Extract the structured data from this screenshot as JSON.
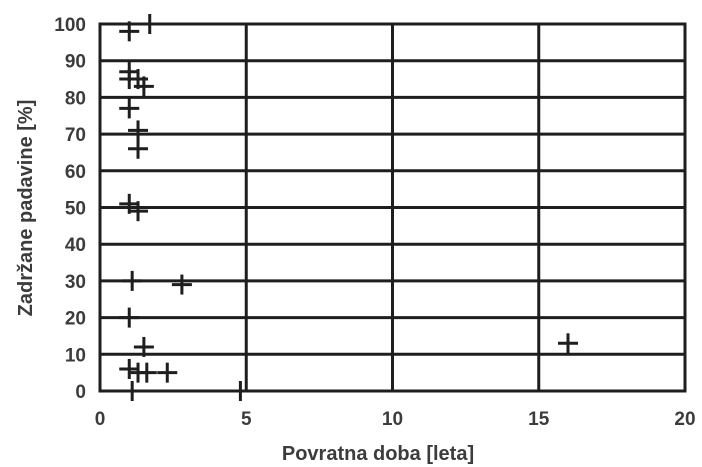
{
  "chart_data": {
    "type": "scatter",
    "title": "",
    "xlabel": "Povratna doba [leta]",
    "ylabel": "Zadržane padavine [%]",
    "xlim": [
      0,
      20
    ],
    "ylim": [
      0,
      100
    ],
    "xticks": [
      "0",
      "5",
      "10",
      "15",
      "20"
    ],
    "yticks": [
      "0",
      "10",
      "20",
      "30",
      "40",
      "50",
      "60",
      "70",
      "80",
      "90",
      "100"
    ],
    "grid": true,
    "marker": "+",
    "marker_color": "#1e1e1e",
    "points": [
      {
        "x": 1.0,
        "y": 98
      },
      {
        "x": 1.7,
        "y": 100
      },
      {
        "x": 1.0,
        "y": 87
      },
      {
        "x": 1.0,
        "y": 85
      },
      {
        "x": 1.3,
        "y": 85
      },
      {
        "x": 1.5,
        "y": 83
      },
      {
        "x": 1.0,
        "y": 77
      },
      {
        "x": 1.3,
        "y": 71
      },
      {
        "x": 1.3,
        "y": 66
      },
      {
        "x": 1.0,
        "y": 51
      },
      {
        "x": 1.3,
        "y": 49
      },
      {
        "x": 1.1,
        "y": 30
      },
      {
        "x": 2.8,
        "y": 29
      },
      {
        "x": 1.0,
        "y": 20
      },
      {
        "x": 1.5,
        "y": 12
      },
      {
        "x": 16.0,
        "y": 13
      },
      {
        "x": 1.0,
        "y": 6
      },
      {
        "x": 1.3,
        "y": 5
      },
      {
        "x": 1.6,
        "y": 5
      },
      {
        "x": 2.3,
        "y": 5
      },
      {
        "x": 1.1,
        "y": 0
      },
      {
        "x": 4.8,
        "y": 0
      }
    ]
  }
}
